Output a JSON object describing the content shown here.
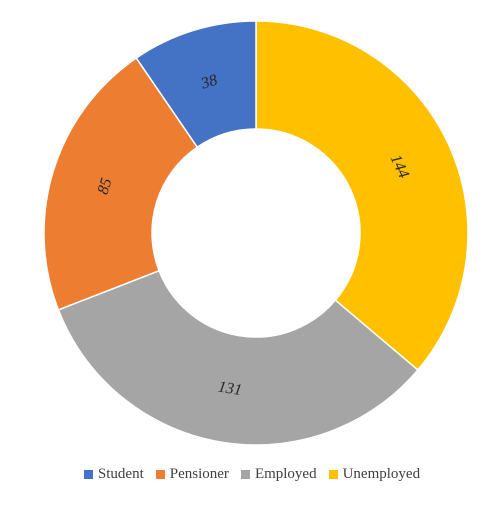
{
  "chart_data": {
    "type": "pie",
    "donut": true,
    "categories": [
      "Student",
      "Pensioner",
      "Employed",
      "Unemployed"
    ],
    "values": [
      38,
      85,
      131,
      144
    ],
    "colors": [
      "#4472C4",
      "#ED7D31",
      "#A5A5A5",
      "#FFC000"
    ],
    "legend_position": "bottom"
  }
}
